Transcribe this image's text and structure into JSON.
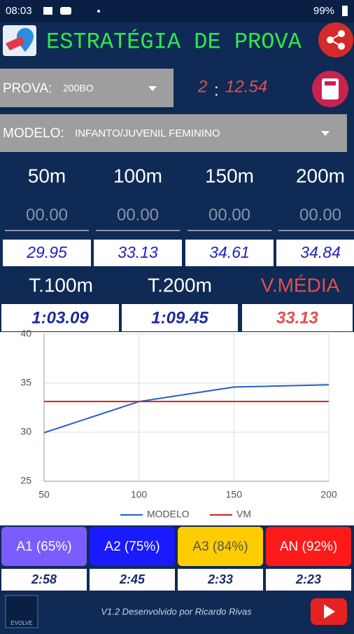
{
  "status_bar": {
    "time": "08:03",
    "battery": "99%"
  },
  "header": {
    "title": "ESTRATÉGIA DE PROVA"
  },
  "prova": {
    "label": "PROVA:",
    "value": "200BO"
  },
  "target_time": {
    "minutes": "2",
    "separator": ":",
    "seconds": "12.54"
  },
  "modelo": {
    "label": "MODELO:",
    "value": "INFANTO/JUVENIL FEMININO"
  },
  "splits": {
    "headers": [
      "50m",
      "100m",
      "150m",
      "200m"
    ],
    "inputs": [
      "00.00",
      "00.00",
      "00.00",
      "00.00"
    ],
    "model": [
      "29.95",
      "33.13",
      "34.61",
      "34.84"
    ]
  },
  "totals": {
    "headers": [
      "T.100m",
      "T.200m",
      "V.MÉDIA"
    ],
    "values": [
      "1:03.09",
      "1:09.45",
      "33.13"
    ]
  },
  "chart_data": {
    "type": "line",
    "x": [
      50,
      100,
      150,
      200
    ],
    "series": [
      {
        "name": "MODELO",
        "color": "#1f5fc4",
        "values": [
          29.95,
          33.13,
          34.61,
          34.84
        ]
      },
      {
        "name": "VM",
        "color": "#d32020",
        "values": [
          33.13,
          33.13,
          33.13,
          33.13
        ]
      }
    ],
    "xlim": [
      50,
      200
    ],
    "xticks": [
      50,
      100,
      150,
      200
    ],
    "ylim": [
      25,
      40
    ],
    "yticks": [
      25,
      30,
      35,
      40
    ],
    "grid": true
  },
  "levels": {
    "buttons": [
      "A1 (65%)",
      "A2 (75%)",
      "A3 (84%)",
      "AN (92%)"
    ],
    "times": [
      "2:58",
      "2:45",
      "2:33",
      "2:23"
    ]
  },
  "footer": {
    "logo": "EVOLVE",
    "text": "V1.2  Desenvolvido por Ricardo Rivas"
  }
}
